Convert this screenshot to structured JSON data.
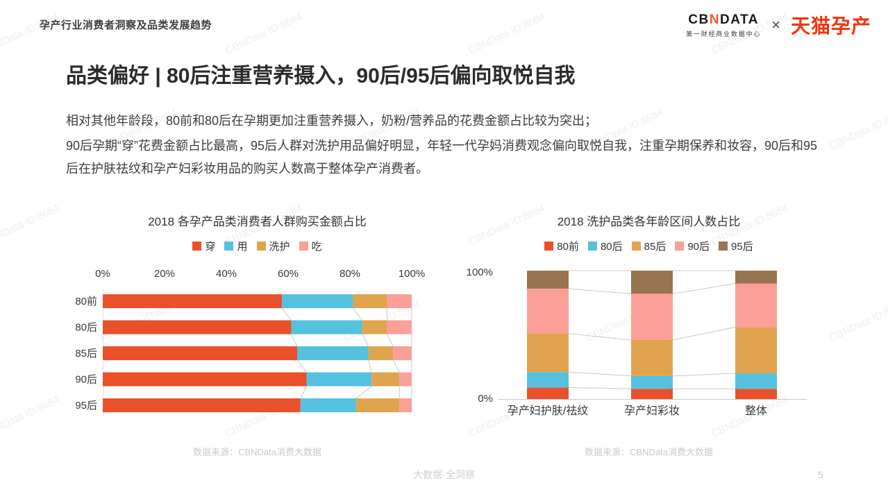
{
  "page": {
    "breadcrumb": "孕产行业消费者洞察及品类发展趋势",
    "title": "品类偏好 | 80后注重营养摄入，90后/95后偏向取悦自我",
    "paragraphs": [
      "相对其他年龄段，80前和80后在孕期更加注重营养摄入，奶粉/营养品的花费金额占比较为突出；",
      "90后孕期“穿”花费金额占比最高，95后人群对洗护用品偏好明显，年轻一代孕妈消费观念偏向取悦自我，注重孕期保养和妆容，90后和95后在护肤祛纹和孕产妇彩妆用品的购买人数高于整体孕产消费者。"
    ],
    "watermark_text": "CBNData ID:8684",
    "footer": {
      "slogan": "大数据·全洞察",
      "page_number": "5"
    }
  },
  "logo": {
    "cb": "CB",
    "n": "N",
    "data": "DATA",
    "subtitle": "第一财经商业数据中心",
    "separator": "×",
    "partner": "天猫孕产",
    "accent_color": "#F15A29",
    "partner_color": "#F5330D"
  },
  "chart_data": [
    {
      "type": "bar",
      "orientation": "horizontal",
      "stacked": true,
      "title": "2018 各孕产品类消费者人群购买金额占比",
      "categories": [
        "80前",
        "80后",
        "85后",
        "90后",
        "95后"
      ],
      "series": [
        {
          "name": "穿",
          "color": "#E9512A",
          "values": [
            58,
            61,
            63,
            66,
            64
          ]
        },
        {
          "name": "用",
          "color": "#55C1DF",
          "values": [
            23,
            23,
            23,
            21,
            18
          ]
        },
        {
          "name": "洗护",
          "color": "#E0A44F",
          "values": [
            11,
            8,
            8,
            9,
            14
          ]
        },
        {
          "name": "吃",
          "color": "#FB9F98",
          "values": [
            8,
            8,
            6,
            4,
            4
          ]
        }
      ],
      "x_ticks": [
        "0%",
        "20%",
        "40%",
        "60%",
        "80%",
        "100%"
      ],
      "xlim": [
        0,
        100
      ],
      "legend_position": "top",
      "grid": false,
      "source": "数据来源：CBNData消费大数据"
    },
    {
      "type": "bar",
      "orientation": "vertical",
      "stacked": true,
      "title": "2018 洗护品类各年龄区间人数占比",
      "categories": [
        "孕产妇护肤/祛纹",
        "孕产妇彩妆",
        "整体"
      ],
      "series": [
        {
          "name": "80前",
          "color": "#E9512A",
          "values": [
            9,
            8,
            8
          ]
        },
        {
          "name": "80后",
          "color": "#55C1DF",
          "values": [
            12,
            10,
            12
          ]
        },
        {
          "name": "85后",
          "color": "#E0A44F",
          "values": [
            30,
            28,
            36
          ]
        },
        {
          "name": "90后",
          "color": "#FB9F98",
          "values": [
            35,
            36,
            34
          ]
        },
        {
          "name": "95后",
          "color": "#977450",
          "values": [
            14,
            18,
            10
          ]
        }
      ],
      "y_ticks": [
        "0%",
        "100%"
      ],
      "ylim": [
        0,
        100
      ],
      "legend_position": "top",
      "grid": false,
      "source": "数据来源：CBNData消费大数据"
    }
  ]
}
